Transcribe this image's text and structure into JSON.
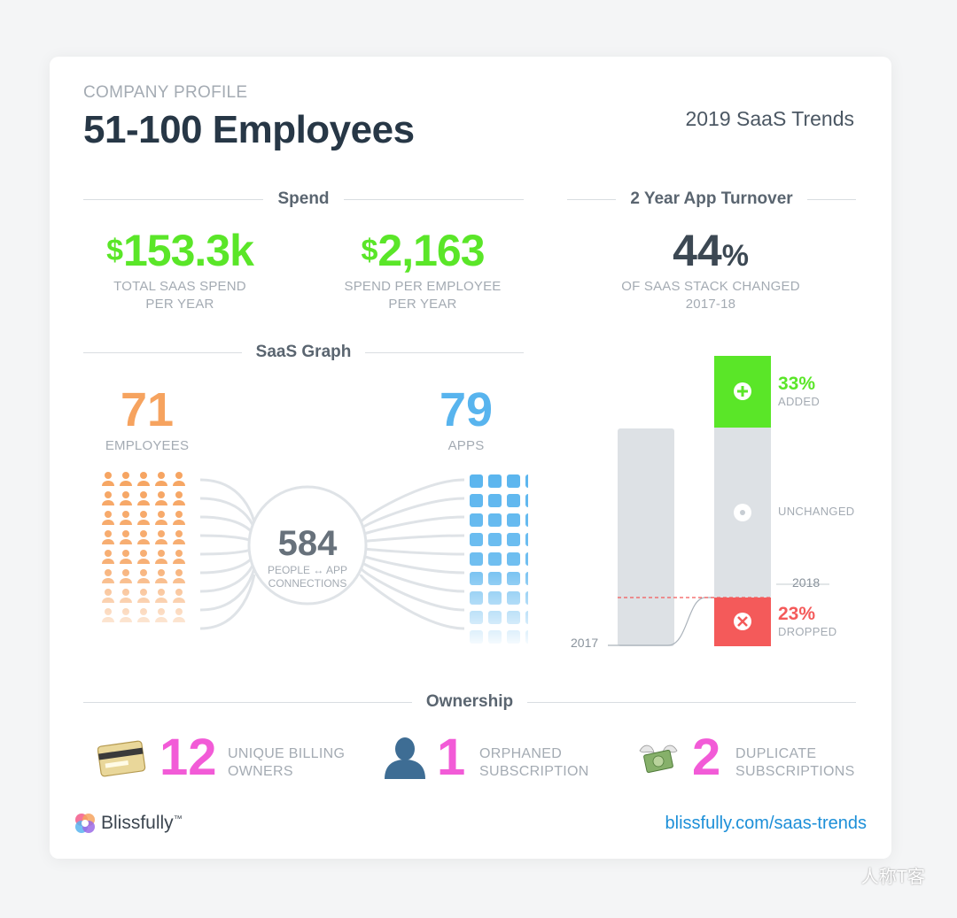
{
  "header": {
    "eyebrow": "COMPANY PROFILE",
    "title": "51-100 Employees",
    "year_label": "2019 SaaS Trends"
  },
  "spend": {
    "heading": "Spend",
    "total": {
      "currency": "$",
      "value": "153.3k",
      "caption_line1": "TOTAL SAAS SPEND",
      "caption_line2": "PER YEAR"
    },
    "per_employee": {
      "currency": "$",
      "value": "2,163",
      "caption_line1": "SPEND PER EMPLOYEE",
      "caption_line2": "PER YEAR"
    }
  },
  "turnover": {
    "heading": "2 Year App Turnover",
    "value": "44",
    "unit": "%",
    "caption_line1": "OF SAAS STACK CHANGED",
    "caption_line2": "2017-18",
    "added": {
      "pct": "33%",
      "label": "ADDED",
      "fraction": 0.33
    },
    "unchanged": {
      "label": "UNCHANGED",
      "fraction": 0.44
    },
    "dropped": {
      "pct": "23%",
      "label": "DROPPED",
      "fraction": 0.23
    },
    "year_2017": "2017",
    "year_2018": "2018"
  },
  "graph": {
    "heading": "SaaS Graph",
    "employees": {
      "value": "71",
      "label": "EMPLOYEES"
    },
    "apps": {
      "value": "79",
      "label": "APPS"
    },
    "connections": {
      "value": "584",
      "label_line1": "PEOPLE ↔ APP",
      "label_line2": "CONNECTIONS"
    }
  },
  "ownership": {
    "heading": "Ownership",
    "billing": {
      "value": "12",
      "label_line1": "UNIQUE BILLING",
      "label_line2": "OWNERS",
      "icon": "credit-card-icon"
    },
    "orphaned": {
      "value": "1",
      "label_line1": "ORPHANED",
      "label_line2": "SUBSCRIPTION",
      "icon": "person-silhouette-icon"
    },
    "duplicate": {
      "value": "2",
      "label_line1": "DUPLICATE",
      "label_line2": "SUBSCRIPTIONS",
      "icon": "money-wings-icon"
    }
  },
  "footer": {
    "brand": "Blissfully",
    "tm": "™",
    "link": "blissfully.com/saas-trends"
  },
  "watermark": "人称T客",
  "colors": {
    "green": "#5ae628",
    "orange": "#f6a35f",
    "blue": "#58b4ee",
    "pink": "#f25bd7",
    "red": "#f45a5a",
    "gray_bar": "#dde1e5",
    "link": "#1c8fd8"
  }
}
